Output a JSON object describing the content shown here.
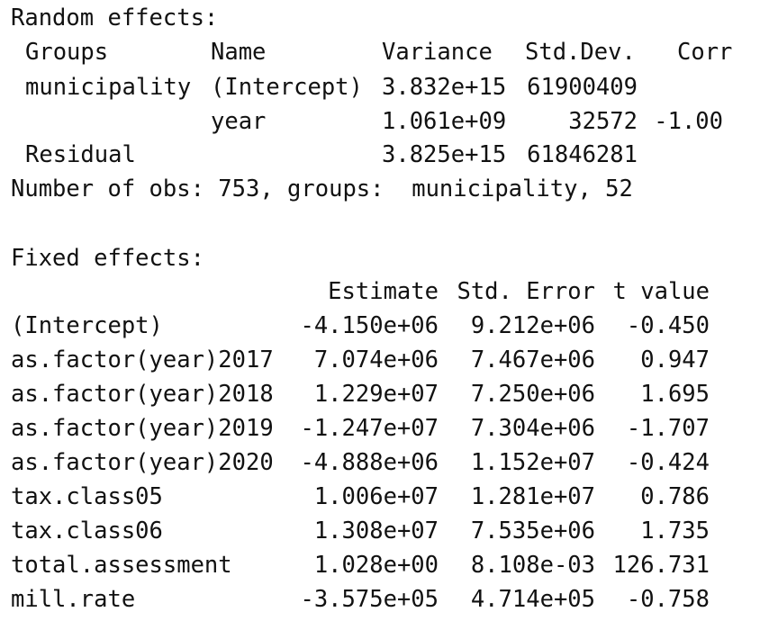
{
  "random_effects": {
    "title": "Random effects:",
    "header": {
      "groups": "Groups",
      "name": "Name",
      "variance": "Variance",
      "std_dev": "Std.Dev.",
      "corr": "Corr"
    },
    "rows": [
      {
        "groups": "municipality",
        "name": "(Intercept)",
        "variance": "3.832e+15",
        "std_dev": "61900409"
      },
      {
        "name": "year",
        "variance": "1.061e+09",
        "std_dev": "32572",
        "corr": "-1.00"
      },
      {
        "groups": "Residual",
        "variance": "3.825e+15",
        "std_dev": "61846281"
      }
    ],
    "summary": "Number of obs: 753, groups:  municipality, 52"
  },
  "fixed_effects": {
    "title": "Fixed effects:",
    "header": {
      "estimate": "Estimate",
      "std_error": "Std. Error",
      "t_value": "t value"
    },
    "rows": [
      {
        "term": "(Intercept)",
        "estimate": "-4.150e+06",
        "std_error": "9.212e+06",
        "t_value": "-0.450"
      },
      {
        "term": "as.factor(year)2017",
        "estimate": "7.074e+06",
        "std_error": "7.467e+06",
        "t_value": "0.947"
      },
      {
        "term": "as.factor(year)2018",
        "estimate": "1.229e+07",
        "std_error": "7.250e+06",
        "t_value": "1.695"
      },
      {
        "term": "as.factor(year)2019",
        "estimate": "-1.247e+07",
        "std_error": "7.304e+06",
        "t_value": "-1.707"
      },
      {
        "term": "as.factor(year)2020",
        "estimate": "-4.888e+06",
        "std_error": "1.152e+07",
        "t_value": "-0.424"
      },
      {
        "term": "tax.class05",
        "estimate": "1.006e+07",
        "std_error": "1.281e+07",
        "t_value": "0.786"
      },
      {
        "term": "tax.class06",
        "estimate": "1.308e+07",
        "std_error": "7.535e+06",
        "t_value": "1.735"
      },
      {
        "term": "total.assessment",
        "estimate": "1.028e+00",
        "std_error": "8.108e-03",
        "t_value": "126.731"
      },
      {
        "term": "mill.rate",
        "estimate": "-3.575e+05",
        "std_error": "4.714e+05",
        "t_value": "-0.758"
      }
    ]
  }
}
